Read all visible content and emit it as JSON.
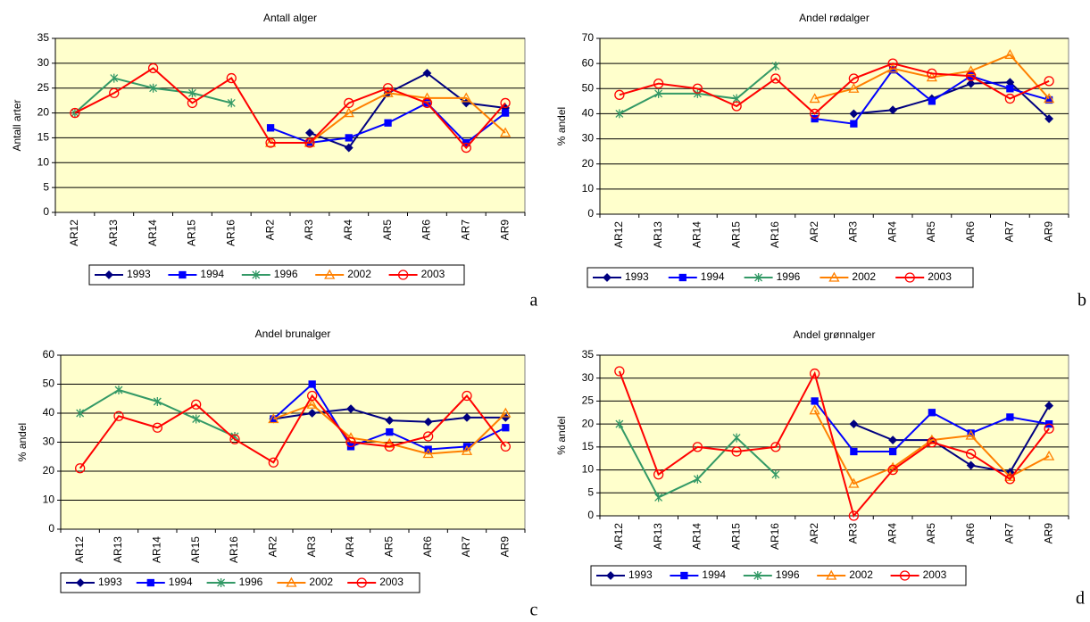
{
  "chart_data": [
    {
      "type": "line",
      "title": "Antall alger",
      "y_label": "Antall arter",
      "label": "a",
      "categories": [
        "AR12",
        "AR13",
        "AR14",
        "AR15",
        "AR16",
        "AR2",
        "AR3",
        "AR4",
        "AR5",
        "AR6",
        "AR7",
        "AR9"
      ],
      "ylim": [
        0,
        35
      ],
      "yticks": [
        0,
        5,
        10,
        15,
        20,
        25,
        30,
        35
      ],
      "grid": true,
      "series": [
        {
          "name": "1993",
          "color": "#000080",
          "marker": "diamond",
          "values": [
            null,
            null,
            null,
            null,
            null,
            null,
            16,
            13,
            24,
            28,
            22,
            21
          ]
        },
        {
          "name": "1994",
          "color": "#0000ff",
          "marker": "square",
          "values": [
            null,
            null,
            null,
            null,
            null,
            17,
            14,
            15,
            18,
            22,
            14,
            20
          ]
        },
        {
          "name": "1996",
          "color": "#339966",
          "marker": "star",
          "values": [
            20,
            27,
            25,
            24,
            22,
            null,
            null,
            null,
            null,
            null,
            null,
            null
          ]
        },
        {
          "name": "2002",
          "color": "#ff8000",
          "marker": "triangle",
          "values": [
            null,
            null,
            null,
            null,
            null,
            14,
            14,
            20,
            24,
            23,
            23,
            16
          ]
        },
        {
          "name": "2003",
          "color": "#ff0000",
          "marker": "circle",
          "values": [
            20,
            24,
            29,
            22,
            27,
            14,
            14,
            22,
            25,
            22,
            13,
            22
          ]
        }
      ]
    },
    {
      "type": "line",
      "title": "Andel rødalger",
      "y_label": "% andel",
      "label": "b",
      "categories": [
        "AR12",
        "AR13",
        "AR14",
        "AR15",
        "AR16",
        "AR2",
        "AR3",
        "AR4",
        "AR5",
        "AR6",
        "AR7",
        "AR9"
      ],
      "ylim": [
        0,
        70
      ],
      "yticks": [
        0,
        10,
        20,
        30,
        40,
        50,
        60,
        70
      ],
      "grid": true,
      "series": [
        {
          "name": "1993",
          "color": "#000080",
          "marker": "diamond",
          "values": [
            null,
            null,
            null,
            null,
            null,
            null,
            40,
            41.5,
            46,
            52,
            52.5,
            38
          ]
        },
        {
          "name": "1994",
          "color": "#0000ff",
          "marker": "square",
          "values": [
            null,
            null,
            null,
            null,
            null,
            38,
            36,
            57.5,
            45,
            55,
            50,
            45.5
          ]
        },
        {
          "name": "1996",
          "color": "#339966",
          "marker": "star",
          "values": [
            40,
            48,
            48,
            46,
            59,
            null,
            null,
            null,
            null,
            null,
            null,
            null
          ]
        },
        {
          "name": "2002",
          "color": "#ff8000",
          "marker": "triangle",
          "values": [
            null,
            null,
            null,
            null,
            null,
            46,
            50,
            58,
            54.5,
            57,
            63.5,
            46
          ]
        },
        {
          "name": "2003",
          "color": "#ff0000",
          "marker": "circle",
          "values": [
            47.5,
            52,
            50,
            43,
            54,
            40,
            54,
            60,
            56,
            55,
            46,
            53
          ]
        }
      ]
    },
    {
      "type": "line",
      "title": "Andel brunalger",
      "y_label": "% andel",
      "label": "c",
      "categories": [
        "AR12",
        "AR13",
        "AR14",
        "AR15",
        "AR16",
        "AR2",
        "AR3",
        "AR4",
        "AR5",
        "AR6",
        "AR7",
        "AR9"
      ],
      "ylim": [
        0,
        60
      ],
      "yticks": [
        0,
        10,
        20,
        30,
        40,
        50,
        60
      ],
      "grid": true,
      "series": [
        {
          "name": "1993",
          "color": "#000080",
          "marker": "diamond",
          "values": [
            null,
            null,
            null,
            null,
            null,
            38,
            40,
            41.5,
            37.5,
            37,
            38.5,
            38.5
          ]
        },
        {
          "name": "1994",
          "color": "#0000ff",
          "marker": "square",
          "values": [
            null,
            null,
            null,
            null,
            null,
            38,
            50,
            28.5,
            33.5,
            27.5,
            28.5,
            35
          ]
        },
        {
          "name": "1996",
          "color": "#339966",
          "marker": "star",
          "values": [
            40,
            48,
            44,
            38,
            32,
            null,
            null,
            null,
            null,
            null,
            null,
            null
          ]
        },
        {
          "name": "2002",
          "color": "#ff8000",
          "marker": "triangle",
          "values": [
            null,
            null,
            null,
            null,
            null,
            38,
            43,
            31.5,
            29.5,
            26,
            27,
            40
          ]
        },
        {
          "name": "2003",
          "color": "#ff0000",
          "marker": "circle",
          "values": [
            21,
            39,
            35,
            43,
            31,
            23,
            46,
            30,
            28.5,
            32,
            46,
            28.5
          ]
        }
      ]
    },
    {
      "type": "line",
      "title": "Andel grønnalger",
      "y_label": "% andel",
      "label": "d",
      "categories": [
        "AR12",
        "AR13",
        "AR14",
        "AR15",
        "AR16",
        "AR2",
        "AR3",
        "AR4",
        "AR5",
        "AR6",
        "AR7",
        "AR9"
      ],
      "ylim": [
        0,
        35
      ],
      "yticks": [
        0,
        5,
        10,
        15,
        20,
        25,
        30,
        35
      ],
      "grid": true,
      "series": [
        {
          "name": "1993",
          "color": "#000080",
          "marker": "diamond",
          "values": [
            null,
            null,
            null,
            null,
            null,
            null,
            20,
            16.5,
            16.5,
            11,
            9.5,
            24
          ]
        },
        {
          "name": "1994",
          "color": "#0000ff",
          "marker": "square",
          "values": [
            null,
            null,
            null,
            null,
            null,
            25,
            14,
            14,
            22.5,
            18,
            21.5,
            20
          ]
        },
        {
          "name": "1996",
          "color": "#339966",
          "marker": "star",
          "values": [
            20,
            4,
            8,
            17,
            9,
            null,
            null,
            null,
            null,
            null,
            null,
            null
          ]
        },
        {
          "name": "2002",
          "color": "#ff8000",
          "marker": "triangle",
          "values": [
            null,
            null,
            null,
            null,
            null,
            23,
            7,
            10.5,
            16.5,
            17.5,
            8.5,
            13
          ]
        },
        {
          "name": "2003",
          "color": "#ff0000",
          "marker": "circle",
          "values": [
            31.5,
            9,
            15,
            14,
            15,
            31,
            0,
            10,
            16,
            13.5,
            8,
            19
          ]
        }
      ]
    }
  ]
}
